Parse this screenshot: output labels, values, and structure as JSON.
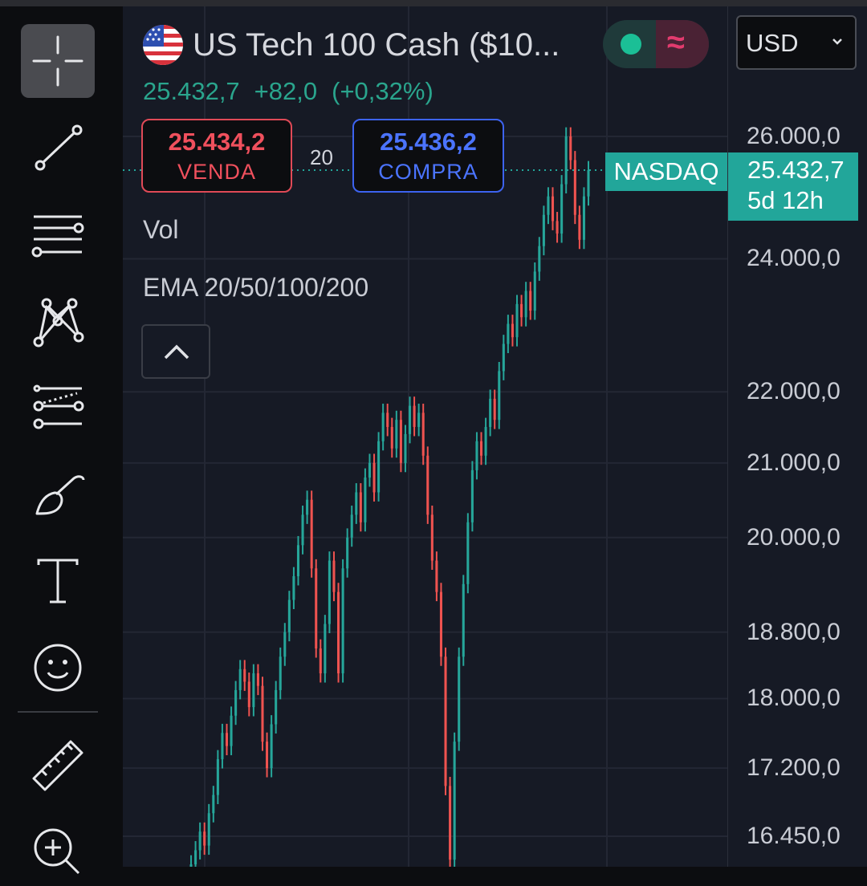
{
  "instrument": {
    "title": "US Tech 100 Cash ($10...",
    "flag_icon": "us-flag-icon",
    "last_price": "25.432,7",
    "change": "+82,0",
    "change_pct": "(+0,32%)"
  },
  "market_toggle": {
    "left_icon": "market-open-dot-icon",
    "right_symbol": "≈"
  },
  "currency": {
    "selected": "USD"
  },
  "trade": {
    "sell_price": "25.434,2",
    "sell_label": "VENDA",
    "spread": "20",
    "buy_price": "25.436,2",
    "buy_label": "COMPRA"
  },
  "studies": {
    "volume": "Vol",
    "ema": "EMA 20/50/100/200"
  },
  "price_label": {
    "exchange": "NASDAQ",
    "price": "25.432,7",
    "countdown": "5d 12h"
  },
  "price_axis": {
    "ticks": [
      {
        "value": 26000,
        "label": "26.000,0"
      },
      {
        "value": 24000,
        "label": "24.000,0"
      },
      {
        "value": 22000,
        "label": "22.000,0"
      },
      {
        "value": 21000,
        "label": "21.000,0"
      },
      {
        "value": 20000,
        "label": "20.000,0"
      },
      {
        "value": 18800,
        "label": "18.800,0"
      },
      {
        "value": 18000,
        "label": "18.000,0"
      },
      {
        "value": 17200,
        "label": "17.200,0"
      },
      {
        "value": 16450,
        "label": "16.450,0"
      }
    ]
  },
  "toolbar": {
    "tools": [
      "crosshair-icon",
      "trend-line-icon",
      "fib-retracement-icon",
      "pattern-icon",
      "prediction-icon",
      "brush-icon",
      "text-icon",
      "emoji-icon",
      "ruler-icon",
      "zoom-in-icon"
    ]
  },
  "colors": {
    "up": "#26a69a",
    "down": "#ef5350",
    "accent": "#22a69a",
    "sell": "#f0505d",
    "buy": "#4b74ff",
    "background": "#161a25"
  },
  "chart_data": {
    "type": "candlestick",
    "scale": "log",
    "ylim": [
      16000,
      26600
    ],
    "last_price": 25432.7,
    "series": [
      {
        "close": 16150
      },
      {
        "close": 16300
      },
      {
        "close": 16500
      },
      {
        "close": 16350
      },
      {
        "close": 16700
      },
      {
        "close": 16900
      },
      {
        "close": 17300
      },
      {
        "close": 17600
      },
      {
        "close": 17450
      },
      {
        "close": 17800
      },
      {
        "close": 18100
      },
      {
        "close": 18350
      },
      {
        "close": 18200
      },
      {
        "close": 17900
      },
      {
        "close": 18300
      },
      {
        "close": 18150
      },
      {
        "close": 17500
      },
      {
        "close": 17200
      },
      {
        "close": 17700
      },
      {
        "close": 18100
      },
      {
        "close": 18500
      },
      {
        "close": 18800
      },
      {
        "close": 19200
      },
      {
        "close": 19500
      },
      {
        "close": 19900
      },
      {
        "close": 20300
      },
      {
        "close": 20500
      },
      {
        "close": 19600
      },
      {
        "close": 18600
      },
      {
        "close": 18300
      },
      {
        "close": 18900
      },
      {
        "close": 19700
      },
      {
        "close": 19300
      },
      {
        "close": 18300
      },
      {
        "close": 19600
      },
      {
        "close": 20000
      },
      {
        "close": 20300
      },
      {
        "close": 20600
      },
      {
        "close": 20200
      },
      {
        "close": 20800
      },
      {
        "close": 21000
      },
      {
        "close": 20600
      },
      {
        "close": 21300
      },
      {
        "close": 21700
      },
      {
        "close": 21500
      },
      {
        "close": 21200
      },
      {
        "close": 21600
      },
      {
        "close": 21000
      },
      {
        "close": 21400
      },
      {
        "close": 21800
      },
      {
        "close": 21500
      },
      {
        "close": 21700
      },
      {
        "close": 21100
      },
      {
        "close": 20300
      },
      {
        "close": 19700
      },
      {
        "close": 19300
      },
      {
        "close": 18500
      },
      {
        "close": 17000
      },
      {
        "close": 16200
      },
      {
        "close": 17500
      },
      {
        "close": 18500
      },
      {
        "close": 19400
      },
      {
        "close": 20200
      },
      {
        "close": 20900
      },
      {
        "close": 21300
      },
      {
        "close": 21100
      },
      {
        "close": 21500
      },
      {
        "close": 21900
      },
      {
        "close": 21600
      },
      {
        "close": 22300
      },
      {
        "close": 22700
      },
      {
        "close": 23000
      },
      {
        "close": 22800
      },
      {
        "close": 23300
      },
      {
        "close": 23100
      },
      {
        "close": 23500
      },
      {
        "close": 23200
      },
      {
        "close": 23800
      },
      {
        "close": 24200
      },
      {
        "close": 24700
      },
      {
        "close": 25000
      },
      {
        "close": 24600
      },
      {
        "close": 24400
      },
      {
        "close": 25200
      },
      {
        "close": 26000
      },
      {
        "close": 25600
      },
      {
        "close": 24700
      },
      {
        "close": 24300
      },
      {
        "close": 25000
      },
      {
        "close": 25432.7
      }
    ]
  }
}
